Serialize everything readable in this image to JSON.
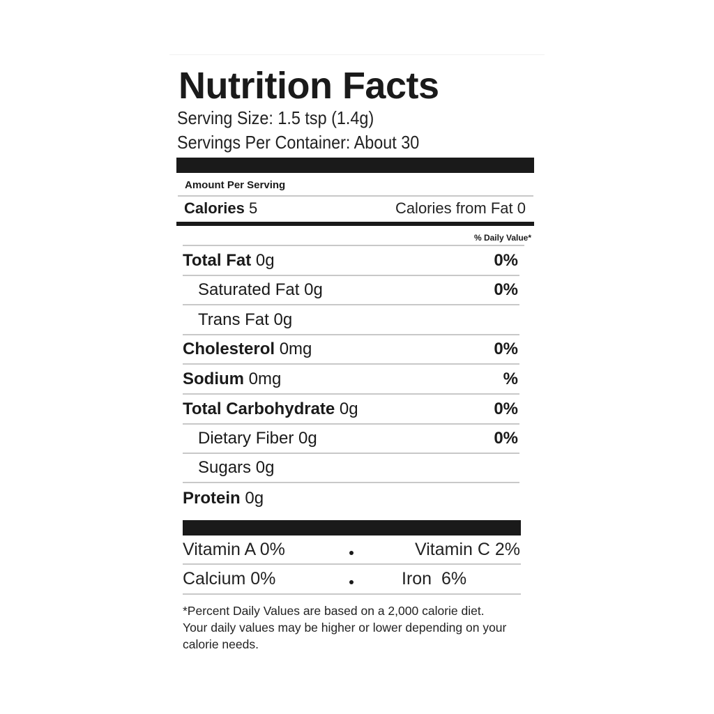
{
  "label": {
    "title": "Nutrition Facts",
    "serving_size": "Serving Size: 1.5 tsp (1.4g)",
    "servings_per_container": "Servings Per Container: About 30",
    "amount_per_serving": "Amount Per Serving",
    "calories_label": "Calories",
    "calories_value": "5",
    "calories_from_fat": "Calories from Fat 0",
    "daily_value_header": "% Daily Value*",
    "nutrients": [
      {
        "name": "Total Fat",
        "amount": "0g",
        "dv": "0%"
      },
      {
        "name": "Saturated Fat",
        "amount": "0g",
        "dv": "0%"
      },
      {
        "name": "Trans Fat",
        "amount": "0g",
        "dv": ""
      },
      {
        "name": "Cholesterol",
        "amount": "0mg",
        "dv": "0%"
      },
      {
        "name": "Sodium",
        "amount": "0mg",
        "dv": "%"
      },
      {
        "name": "Total Carbohydrate",
        "amount": "0g",
        "dv": "0%"
      },
      {
        "name": "Dietary Fiber",
        "amount": "0g",
        "dv": "0%"
      },
      {
        "name": "Sugars",
        "amount": "0g",
        "dv": ""
      },
      {
        "name": "Protein",
        "amount": "0g",
        "dv": ""
      }
    ],
    "vitamins": [
      "Vitamin A 0%",
      "Vitamin C 2%",
      "Calcium 0%",
      "Iron  6%"
    ],
    "footnote": "*Percent Daily Values are based on a 2,000 calorie diet. Your daily values may be higher or lower depending on your calorie needs."
  }
}
